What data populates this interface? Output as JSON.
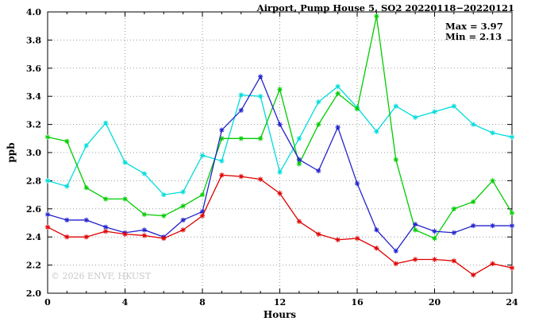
{
  "chart_data": {
    "type": "line",
    "title": "Airport, Pump House 5, SO2 20220118−20220121",
    "xlabel": "Hours",
    "ylabel": "ppb",
    "xlim": [
      0,
      24
    ],
    "ylim": [
      2.0,
      4.0
    ],
    "x_ticks": [
      0,
      4,
      8,
      12,
      16,
      20,
      24
    ],
    "x_minor_step": 1,
    "y_ticks": [
      2.0,
      2.2,
      2.4,
      2.6,
      2.8,
      3.0,
      3.2,
      3.4,
      3.6,
      3.8,
      4.0
    ],
    "grid": true,
    "legend": "none",
    "marker": "asterisk",
    "annotations": {
      "max_label": "Max = 3.97",
      "min_label": "Min = 2.13"
    },
    "watermark": "© 2026 ENVF, HKUST",
    "x": [
      0,
      1,
      2,
      3,
      4,
      5,
      6,
      7,
      8,
      9,
      10,
      11,
      12,
      13,
      14,
      15,
      16,
      17,
      18,
      19,
      20,
      21,
      22,
      23,
      24
    ],
    "series": [
      {
        "name": "series-cyan",
        "color": "#00dcdc",
        "values": [
          2.8,
          2.76,
          3.05,
          3.21,
          2.93,
          2.85,
          2.7,
          2.72,
          2.98,
          2.94,
          3.41,
          3.4,
          2.86,
          3.1,
          3.36,
          3.47,
          3.32,
          3.15,
          3.33,
          3.25,
          3.29,
          3.33,
          3.2,
          3.14,
          3.11
        ]
      },
      {
        "name": "series-green",
        "color": "#00cc00",
        "values": [
          3.11,
          3.08,
          2.75,
          2.67,
          2.67,
          2.56,
          2.55,
          2.62,
          2.7,
          3.1,
          3.1,
          3.1,
          3.45,
          2.92,
          3.2,
          3.42,
          3.31,
          3.97,
          2.95,
          2.45,
          2.39,
          2.6,
          2.65,
          2.8,
          2.57
        ]
      },
      {
        "name": "series-blue",
        "color": "#2222cc",
        "values": [
          2.56,
          2.52,
          2.52,
          2.47,
          2.43,
          2.45,
          2.4,
          2.52,
          2.58,
          3.16,
          3.3,
          3.54,
          3.2,
          2.95,
          2.87,
          3.18,
          2.78,
          2.45,
          2.3,
          2.49,
          2.44,
          2.43,
          2.48,
          2.48,
          2.48
        ]
      },
      {
        "name": "series-red",
        "color": "#e00000",
        "values": [
          2.47,
          2.4,
          2.4,
          2.44,
          2.42,
          2.41,
          2.39,
          2.45,
          2.55,
          2.84,
          2.83,
          2.81,
          2.71,
          2.51,
          2.42,
          2.38,
          2.39,
          2.32,
          2.21,
          2.24,
          2.24,
          2.23,
          2.13,
          2.21,
          2.18
        ]
      }
    ]
  }
}
